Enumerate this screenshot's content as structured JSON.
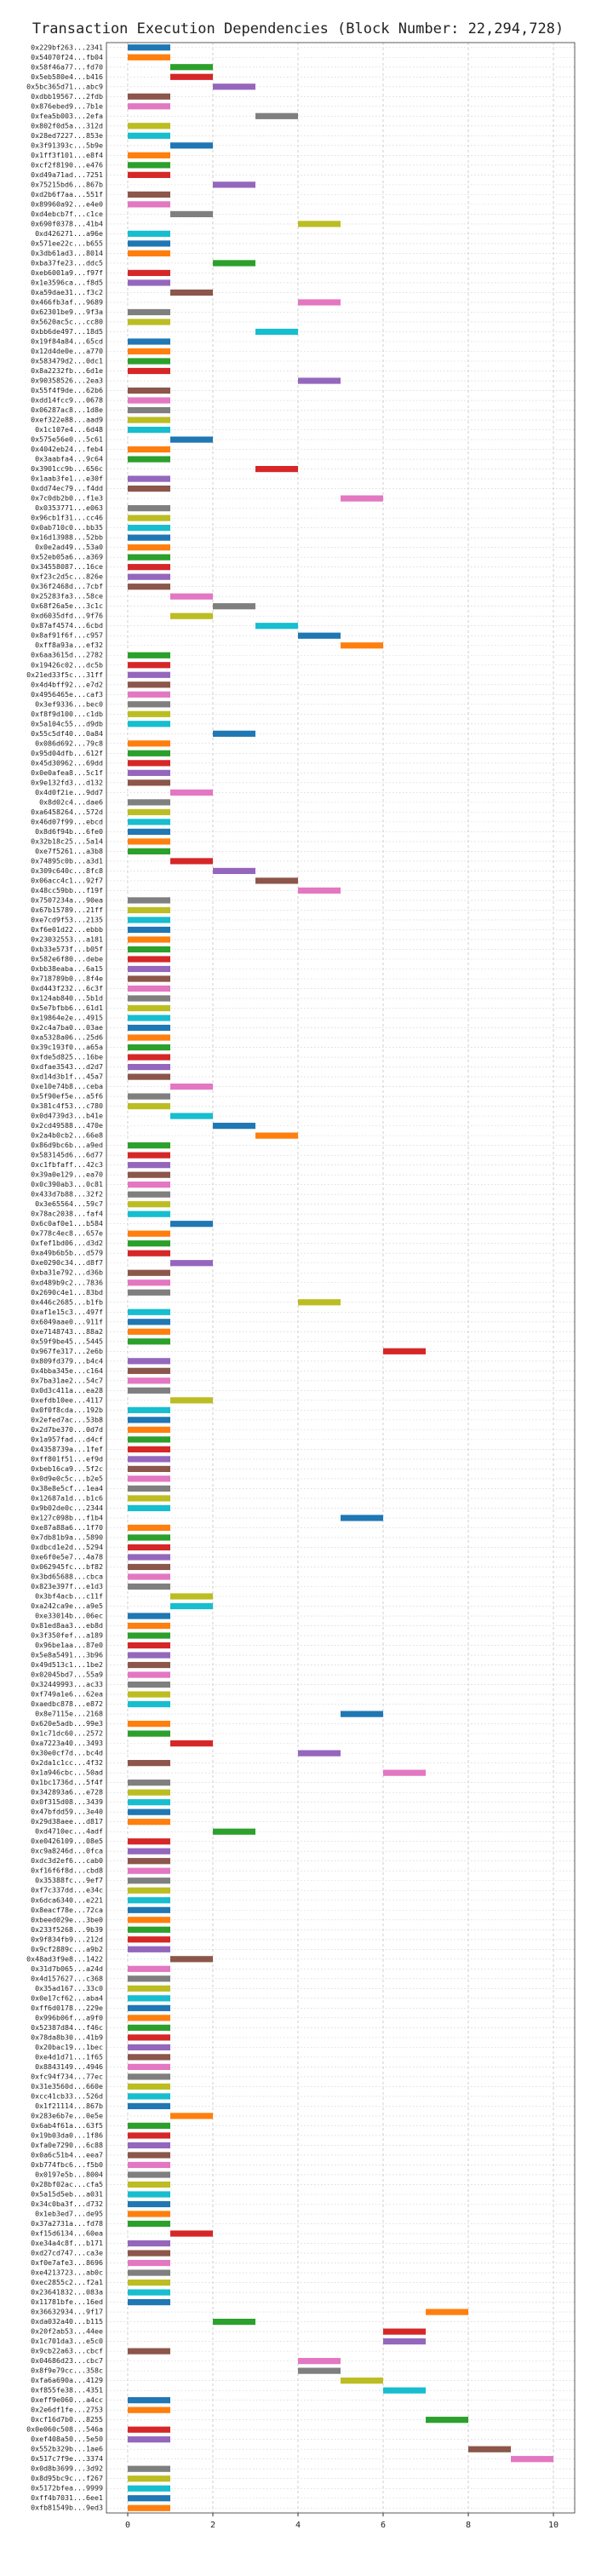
{
  "chart_data": {
    "type": "gantt",
    "title": "Transaction Execution Dependencies (Block Number: 22,294,728)",
    "categories": [
      "0x229bf263...2341",
      "0x54070f24...fb04",
      "0x58f46a77...fd70",
      "0x5eb580e4...b416",
      "0x5bc365d71...abc9",
      "0xdbb19567...2fdb",
      "0x876ebed9...7b1e",
      "0xfea5b003...2efa",
      "0x802f0d5a...312d",
      "0x28ed7227...853e",
      "0x3f91393c...5b9e",
      "0x1ff3f101...e8f4",
      "0xcf2f8190...e476",
      "0xd49a71ad...7251",
      "0x75215bd6...867b",
      "0xd2b6f7aa...551f",
      "0x89960a92...e4e0",
      "0xd4ebcb7f...c1ce",
      "0x690f0378...41b4",
      "0xd426271...a96e",
      "0x571ee22c...b655",
      "0x3db61ad3...8014",
      "0xba37fe23...ddc5",
      "0xeb6001a9...f97f",
      "0x1e3596ca...f8d5",
      "0xa59dae31...f3c2",
      "0x466fb3af...9689",
      "0x62301be9...9f3a",
      "0x5620ac5c...cc80",
      "0xbb6de497...18d5",
      "0x19f84a84...65cd",
      "0x12d4de0e...a770",
      "0x583479d2...0dc1",
      "0x8a2232fb...6d1e",
      "0x90358526...2ea3",
      "0x55f4f9de...62b6",
      "0xdd14fcc9...0678",
      "0x06287ac8...1d8e",
      "0xef322e88...aad9",
      "0x1c107e4...6d48",
      "0x575e56e0...5c61",
      "0x4042eb24...feb4",
      "0x3aabfa4...9c64",
      "0x3901cc9b...656c",
      "0x1aab3fe1...e30f",
      "0xdd74ec79...f4dd",
      "0x7c0db2b0...f1e3",
      "0x0353771...e063",
      "0x96cb1f31...cc46",
      "0x0ab710c0...bb35",
      "0x16d13988...52bb",
      "0x0e2ad49...53a0",
      "0x52eb05a6...a369",
      "0x34558087...16ce",
      "0xf23c2d5c...826e",
      "0x36f2468d...7cbf",
      "0x25283fa3...58ce",
      "0x68f26a5e...3c1c",
      "0xd6035dfd...9f76",
      "0x87af4574...6cbd",
      "0x8af91f6f...c957",
      "0xff8a93a...ef32",
      "0x6aa3615d...2782",
      "0x19426c02...dc5b",
      "0x21ed33f5c...31ff",
      "0x4d4bff92...e7d2",
      "0x4956465e...caf3",
      "0x3ef9336...bec0",
      "0xf8f9d100...c1db",
      "0x5a104c55...d9db",
      "0x55c5df40...0a84",
      "0x086d692...79c8",
      "0x95d04dfb...612f",
      "0x45d30962...69dd",
      "0x0e0afea8...5c1f",
      "0x9e132fd3...d132",
      "0x4d0f2ie...9dd7",
      "0x8d02c4...dae6",
      "0xa6458264...572d",
      "0x46d07f99...ebcd",
      "0x8d6f94b...6fe0",
      "0x32b18c25...5a14",
      "0xe7f5261...a3b8",
      "0x74895c0b...a3d1",
      "0x309c640c...8fc8",
      "0x06acc4c1...92f7",
      "0x48cc59bb...f19f",
      "0x7507234a...90ea",
      "0x67b15789...21ff",
      "0xe7cd9f53...2135",
      "0xf6e01d22...ebbb",
      "0x23032553...a181",
      "0xb33e573f...b05f",
      "0x582e6f80...debe",
      "0xbb38eaba...6a15",
      "0x718789b0...8f4e",
      "0xd443f232...6c3f",
      "0x124ab840...5b1d",
      "0x5e7bfbb6...61d1",
      "0x19864e2e...4915",
      "0x2c4a7ba0...03ae",
      "0xa5328a06...25d6",
      "0x39c193f0...a65a",
      "0xfde5d825...16be",
      "0xdfae3543...d2d7",
      "0xd14d3b1f...45a7",
      "0xe10e74b8...ceba",
      "0x5f90ef5e...a5f6",
      "0x381c4f53...c780",
      "0x0d4739d3...b41e",
      "0x2cd49588...470e",
      "0x2a4b0cb2...66e8",
      "0x86d9bc6b...a9ed",
      "0x583145d6...6d77",
      "0xc1fbfaff...42c3",
      "0x39a0e129...ea70",
      "0x0c390ab3...0c81",
      "0x433d7b88...32f2",
      "0x3e65564...59c7",
      "0x78ac2038...faf4",
      "0x6c0af0e1...b584",
      "0x778c4ec8...657e",
      "0xfef1bd06...d3d2",
      "0xa49b6b5b...d579",
      "0xe0290c34...d8f7",
      "0xba31e792...d36b",
      "0xd489b9c2...7836",
      "0x2690c4e1...83bd",
      "0x446c2685...b1fb",
      "0xaf1e15c3...497f",
      "0x6049aae0...911f",
      "0xe7148743...88a2",
      "0x59f9be45...5445",
      "0x967fe317...2e6b",
      "0x809fd379...b4c4",
      "0x4bba345e...c164",
      "0x7ba31ae2...54c7",
      "0x0d3c411a...ea28",
      "0xefdb10ee...4117",
      "0x0f0f8cda...192b",
      "0x2efed7ac...53b8",
      "0x2d7be370...0d7d",
      "0x1a957fad...d4cf",
      "0x4358739a...1fef",
      "0xff801f51...ef9d",
      "0xbeb16ca9...5f2c",
      "0x0d9e0c5c...b2e5",
      "0x38e8e5cf...1ea4",
      "0x12687a1d...b1c6",
      "0x9b02de0c...2344",
      "0x127c098b...f1b4",
      "0xe87a88a6...1f70",
      "0x7db81b9a...5890",
      "0xdbcd1e2d...5294",
      "0xe6f0e5e7...4a78",
      "0x062945fc...bf82",
      "0x3bd65688...cbca",
      "0x823e397f...e1d3",
      "0x3bf4acb...c11f",
      "0xa242ca9e...a9e5",
      "0xe33014b...06ec",
      "0x81ed8aa3...eb8d",
      "0x3f350fef...a189",
      "0x96be1aa...87e0",
      "0x5e8a5491...3b96",
      "0x49d513c1...1be2",
      "0x02045bd7...55a9",
      "0x32449993...ac33",
      "0xf749a1e6...62ea",
      "0xaedbc878...e872",
      "0x8e7115e...2168",
      "0x620e5adb...99e3",
      "0x1c71dc60...2572",
      "0xa7223a40...3493",
      "0x30e0cf7d...bc4d",
      "0x2da1c1cc...4f32",
      "0x1a946cbc...50ad",
      "0x1bc1736d...5f4f",
      "0x342893a6...e728",
      "0x0f315d08...3439",
      "0x47bfdd59...3e40",
      "0x29d38aee...d817",
      "0xd4710ec...4adf",
      "0xe0426109...08e5",
      "0xc9a8246d...0fca",
      "0xdc3d2ef6...cab0",
      "0xf16f6f8d...cbd8",
      "0x35388fc...9ef7",
      "0xf7c337dd...e34c",
      "0x6dca6340...e221",
      "0x8eacf78e...72ca",
      "0xbeed029e...3be0",
      "0x233f5268...9b39",
      "0x9f834fb9...212d",
      "0x9cf2889c...a9b2",
      "0x48ad3f9e8...1422",
      "0x31d7b065...a24d",
      "0x4d157627...c368",
      "0x35ad167...33c0",
      "0x0e17cf62...aba4",
      "0xff6d0178...229e",
      "0x996b06f...a9f0",
      "0x52387d84...f46c",
      "0x78da8b30...41b9",
      "0x20bac19...1bec",
      "0xe4d1d71...1f65",
      "0x8843149...4946",
      "0xfc94f734...77ec",
      "0x31e3560d...660e",
      "0xcc41cb33...526d",
      "0x1f21114...867b",
      "0x283e6b7e...0e5e",
      "0x6ab4f61a...63f5",
      "0x19b03da0...1f86",
      "0xfa0e7290...6c88",
      "0x0a6c51b4...eea7",
      "0xb774fbc6...f5b0",
      "0x0197e5b...8004",
      "0x28bf02ac...cfa5",
      "0x5a15d5eb...a031",
      "0x34c0ba3f...d732",
      "0x1eb3ed7...de95",
      "0x37a2731a...fd78",
      "0xf15d6134...60ea",
      "0xe34a4c8f...b171",
      "0xd27cd747...ca3e",
      "0xf0e7afe3...8696",
      "0xe4213723...ab0c",
      "0xec2855c2...f2a1",
      "0x23641832...083a",
      "0x11781bfe...16ed",
      "0x36632934...9f17",
      "0xda032a40...b115",
      "0x20f2ab53...44ee",
      "0x1c701da3...e5c0",
      "0x9cb22a63...cbcf",
      "0x04686d23...cbc7",
      "0x8f9e79cc...358c",
      "0xfa6a690a...4129",
      "0xf855fe38...4351",
      "0xeff9e060...a4cc",
      "0x2e6df1fe...2753",
      "0xcf16d7b0...8255",
      "0x0e060c508...546a",
      "0xef408a50...5e50",
      "0x552b329b...1ae6",
      "0x517c7f9e...3374",
      "0x0d8b3699...3d92",
      "0x8d95bc9c...f267",
      "0x5172bfea...9999",
      "0xff4b7031...6ee1",
      "0xfb81549b...9ed3"
    ],
    "starts": [
      0,
      0,
      1,
      1,
      2,
      0,
      0,
      3,
      0,
      0,
      1,
      0,
      0,
      0,
      2,
      0,
      0,
      1,
      4,
      0,
      0,
      0,
      2,
      0,
      0,
      1,
      4,
      0,
      0,
      3,
      0,
      0,
      0,
      0,
      4,
      0,
      0,
      0,
      0,
      0,
      1,
      0,
      0,
      3,
      0,
      0,
      5,
      0,
      0,
      0,
      0,
      0,
      0,
      0,
      0,
      0,
      1,
      2,
      1,
      3,
      4,
      5,
      0,
      0,
      0,
      0,
      0,
      0,
      0,
      0,
      2,
      0,
      0,
      0,
      0,
      0,
      1,
      0,
      0,
      0,
      0,
      0,
      0,
      1,
      2,
      3,
      4,
      0,
      0,
      0,
      0,
      0,
      0,
      0,
      0,
      0,
      0,
      0,
      0,
      0,
      0,
      0,
      0,
      0,
      0,
      0,
      1,
      0,
      0,
      1,
      2,
      3,
      0,
      0,
      0,
      0,
      0,
      0,
      0,
      0,
      1,
      0,
      0,
      0,
      1,
      0,
      0,
      0,
      4,
      0,
      0,
      0,
      0,
      6,
      0,
      0,
      0,
      0,
      1,
      0,
      0,
      0,
      0,
      0,
      0,
      0,
      0,
      0,
      0,
      0,
      5,
      0,
      0,
      0,
      0,
      0,
      0,
      0,
      1,
      1,
      0,
      0,
      0,
      0,
      0,
      0,
      0,
      0,
      0,
      0,
      5,
      0,
      0,
      1,
      4,
      0,
      6,
      0,
      0,
      0,
      0,
      0,
      2,
      0,
      0,
      0,
      0,
      0,
      0,
      0,
      0,
      0,
      0,
      0,
      0,
      1,
      0,
      0,
      0,
      0,
      0,
      0,
      0,
      0,
      0,
      0,
      0,
      0,
      0,
      0,
      0,
      1,
      0,
      0,
      0,
      0,
      0,
      0,
      0,
      0,
      0,
      0,
      0,
      1,
      0,
      0,
      0,
      0,
      0,
      0,
      0,
      7,
      2,
      6,
      6,
      0,
      4,
      4,
      5,
      6,
      0,
      0,
      7,
      0,
      0,
      8,
      9,
      0,
      0,
      0,
      0,
      0
    ],
    "ends": [
      1,
      1,
      2,
      2,
      3,
      1,
      1,
      4,
      1,
      1,
      2,
      1,
      1,
      1,
      3,
      1,
      1,
      2,
      5,
      1,
      1,
      1,
      3,
      1,
      1,
      2,
      5,
      1,
      1,
      4,
      1,
      1,
      1,
      1,
      5,
      1,
      1,
      1,
      1,
      1,
      2,
      1,
      1,
      4,
      1,
      1,
      6,
      1,
      1,
      1,
      1,
      1,
      1,
      1,
      1,
      1,
      2,
      3,
      2,
      4,
      5,
      6,
      1,
      1,
      1,
      1,
      1,
      1,
      1,
      1,
      3,
      1,
      1,
      1,
      1,
      1,
      2,
      1,
      1,
      1,
      1,
      1,
      1,
      2,
      3,
      4,
      5,
      1,
      1,
      1,
      1,
      1,
      1,
      1,
      1,
      1,
      1,
      1,
      1,
      1,
      1,
      1,
      1,
      1,
      1,
      1,
      2,
      1,
      1,
      2,
      3,
      4,
      1,
      1,
      1,
      1,
      1,
      1,
      1,
      1,
      2,
      1,
      1,
      1,
      2,
      1,
      1,
      1,
      5,
      1,
      1,
      1,
      1,
      7,
      1,
      1,
      1,
      1,
      2,
      1,
      1,
      1,
      1,
      1,
      1,
      1,
      1,
      1,
      1,
      1,
      6,
      1,
      1,
      1,
      1,
      1,
      1,
      1,
      2,
      2,
      1,
      1,
      1,
      1,
      1,
      1,
      1,
      1,
      1,
      1,
      6,
      1,
      1,
      2,
      5,
      1,
      7,
      1,
      1,
      1,
      1,
      1,
      3,
      1,
      1,
      1,
      1,
      1,
      1,
      1,
      1,
      1,
      1,
      1,
      1,
      2,
      1,
      1,
      1,
      1,
      1,
      1,
      1,
      1,
      1,
      1,
      1,
      1,
      1,
      1,
      1,
      2,
      1,
      1,
      1,
      1,
      1,
      1,
      1,
      1,
      1,
      1,
      1,
      2,
      1,
      1,
      1,
      1,
      1,
      1,
      1,
      8,
      3,
      7,
      7,
      1,
      5,
      5,
      6,
      7,
      1,
      1,
      8,
      1,
      1,
      9,
      10,
      1,
      1,
      1,
      1,
      1
    ],
    "colors": [
      "#1f77b4",
      "#ff7f0e",
      "#2ca02c",
      "#d62728",
      "#9467bd",
      "#8c564b",
      "#e377c2",
      "#7f7f7f",
      "#bcbd22",
      "#17becf"
    ],
    "xlim": [
      -0.5,
      10.5
    ],
    "xticks": [
      0,
      2,
      4,
      6,
      8,
      10
    ],
    "grid": true
  }
}
